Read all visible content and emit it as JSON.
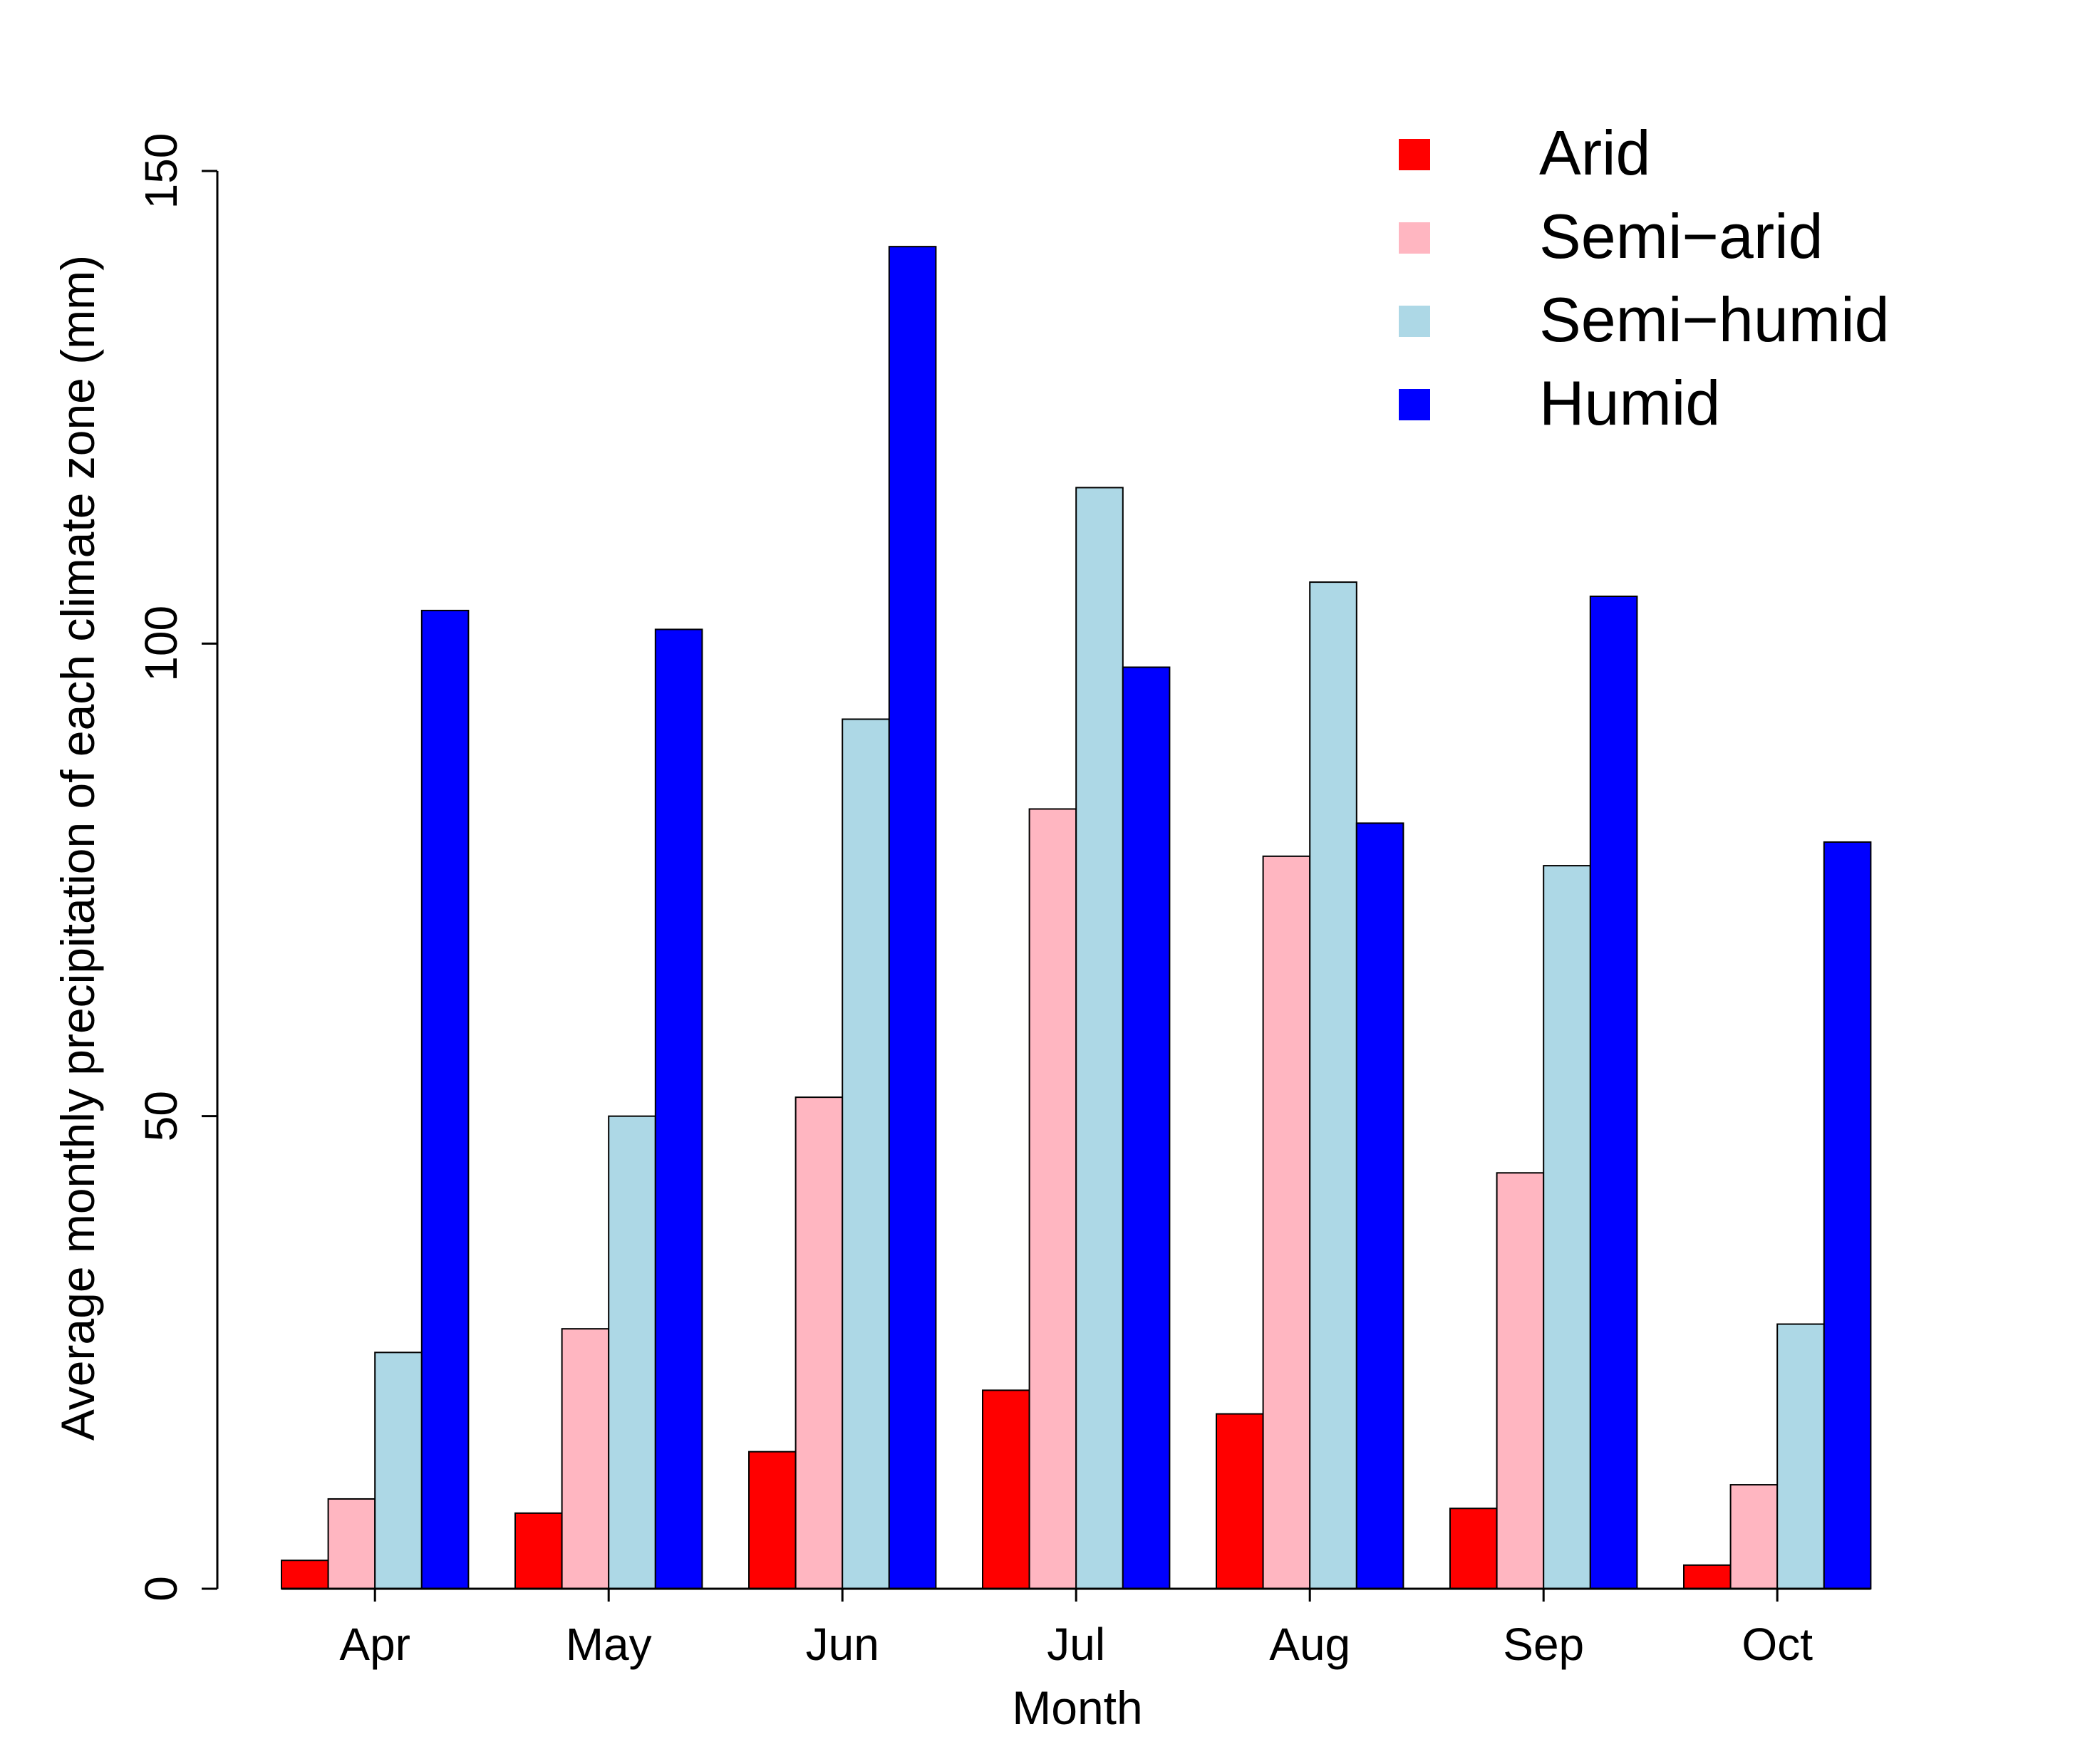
{
  "chart_data": {
    "type": "bar",
    "title": "",
    "xlabel": "Month",
    "ylabel": "Average monthly precipitation of each climate zone (mm)",
    "ylim": [
      0,
      150
    ],
    "yticks": [
      0,
      50,
      100,
      150
    ],
    "categories": [
      "Apr",
      "May",
      "Jun",
      "Jul",
      "Aug",
      "Sep",
      "Oct"
    ],
    "legend_position": "top-right",
    "series": [
      {
        "name": "Arid",
        "color": "#ff0000",
        "values": [
          3,
          8,
          14.5,
          21,
          18.5,
          8.5,
          2.5
        ]
      },
      {
        "name": "Semi−arid",
        "color": "#ffb6c1",
        "values": [
          9.5,
          27.5,
          52,
          82.5,
          77.5,
          44,
          11
        ]
      },
      {
        "name": "Semi−humid",
        "color": "#add8e6",
        "values": [
          25,
          50,
          92,
          116.5,
          106.5,
          76.5,
          28
        ]
      },
      {
        "name": "Humid",
        "color": "#0000ff",
        "values": [
          103.5,
          101.5,
          142,
          97.5,
          81,
          105,
          79
        ]
      }
    ]
  }
}
